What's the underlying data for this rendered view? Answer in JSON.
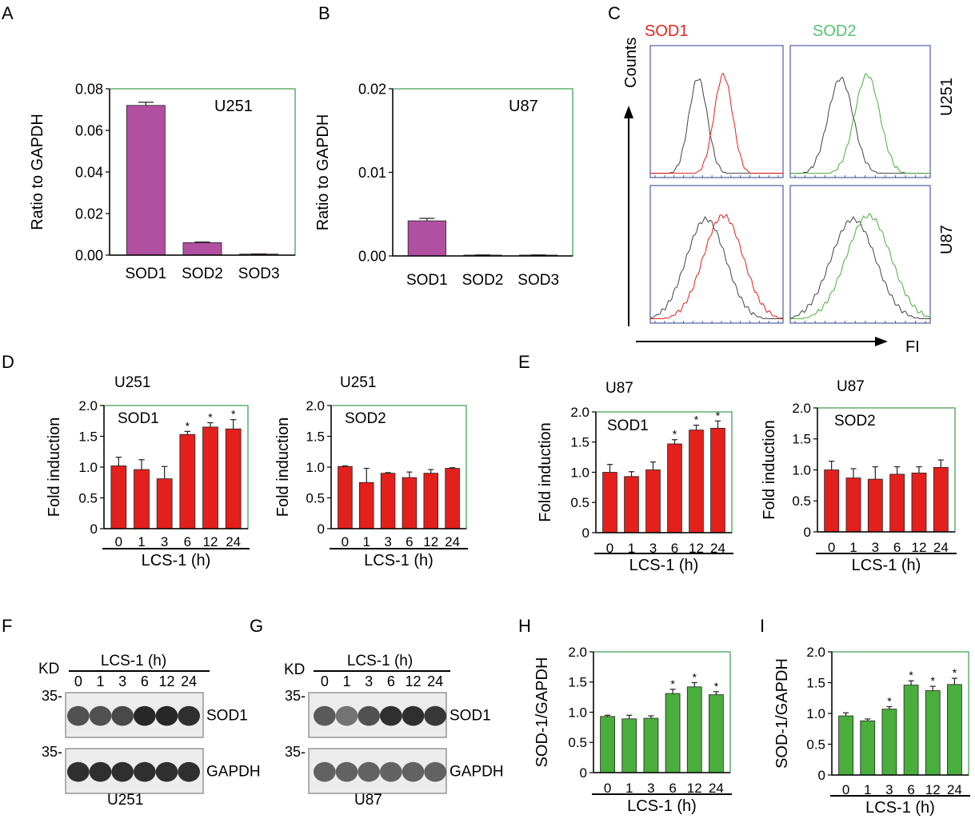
{
  "panel_letters": [
    "A",
    "B",
    "C",
    "D",
    "E",
    "F",
    "G",
    "H",
    "I"
  ],
  "colors": {
    "magenta": "#b14fa1",
    "red": "#e3201c",
    "green": "#4aae3c",
    "frame_green": "#3a9a4a",
    "frame_blue": "#2a3f8f",
    "gray_trace": "#444444",
    "sod1_title": "#e8221d",
    "sod2_title": "#55c174"
  },
  "chart_data": [
    {
      "id": "A",
      "type": "bar",
      "title": "U251",
      "ylabel": "Ratio to GAPDH",
      "categories": [
        "SOD1",
        "SOD2",
        "SOD3"
      ],
      "values": [
        0.072,
        0.006,
        0.0005
      ],
      "errors": [
        0.0015,
        0.0003,
        0.0001
      ],
      "ylim": [
        0,
        0.08
      ],
      "yticks": [
        "0.00",
        "0.02",
        "0.04",
        "0.06",
        "0.08"
      ]
    },
    {
      "id": "B",
      "type": "bar",
      "title": "U87",
      "ylabel": "Ratio to GAPDH",
      "categories": [
        "SOD1",
        "SOD2",
        "SOD3"
      ],
      "values": [
        0.0042,
        0.0001,
        0.0001
      ],
      "errors": [
        0.0003,
        2e-05,
        2e-05
      ],
      "ylim": [
        0,
        0.02
      ],
      "yticks": [
        "0.00",
        "0.01",
        "0.02"
      ]
    },
    {
      "id": "D1",
      "type": "bar",
      "title": "U251",
      "inner_label": "SOD1",
      "ylabel": "Fold induction",
      "xlabel": "LCS-1 (h)",
      "categories": [
        "0",
        "1",
        "3",
        "6",
        "12",
        "24"
      ],
      "values": [
        1.02,
        0.96,
        0.81,
        1.53,
        1.65,
        1.62
      ],
      "errors": [
        0.14,
        0.16,
        0.2,
        0.05,
        0.07,
        0.15
      ],
      "significant": [
        false,
        false,
        false,
        true,
        true,
        true
      ],
      "ylim": [
        0,
        2.0
      ],
      "yticks": [
        "0",
        "0.5",
        "1.0",
        "1.5",
        "2.0"
      ]
    },
    {
      "id": "D2",
      "type": "bar",
      "title": "U251",
      "inner_label": "SOD2",
      "ylabel": "Fold induction",
      "xlabel": "LCS-1 (h)",
      "categories": [
        "0",
        "1",
        "3",
        "6",
        "12",
        "24"
      ],
      "values": [
        1.01,
        0.75,
        0.9,
        0.83,
        0.9,
        0.98
      ],
      "errors": [
        0.01,
        0.23,
        0.01,
        0.09,
        0.06,
        0.01
      ],
      "significant": [
        false,
        false,
        false,
        false,
        false,
        false
      ],
      "ylim": [
        0,
        2.0
      ],
      "yticks": [
        "0",
        "0.5",
        "1.0",
        "1.5",
        "2.0"
      ]
    },
    {
      "id": "E1",
      "type": "bar",
      "title": "U87",
      "inner_label": "SOD1",
      "ylabel": "Fold induction",
      "xlabel": "LCS-1 (h)",
      "categories": [
        "0",
        "1",
        "3",
        "6",
        "12",
        "24"
      ],
      "values": [
        1.0,
        0.93,
        1.04,
        1.47,
        1.7,
        1.73
      ],
      "errors": [
        0.13,
        0.08,
        0.13,
        0.07,
        0.08,
        0.12
      ],
      "significant": [
        false,
        false,
        false,
        true,
        true,
        true
      ],
      "ylim": [
        0,
        2.0
      ],
      "yticks": [
        "0",
        "0.5",
        "1.0",
        "1.5",
        "2.0"
      ]
    },
    {
      "id": "E2",
      "type": "bar",
      "title": "U87",
      "inner_label": "SOD2",
      "ylabel": "Fold induction",
      "xlabel": "LCS-1 (h)",
      "categories": [
        "0",
        "1",
        "3",
        "6",
        "12",
        "24"
      ],
      "values": [
        1.0,
        0.87,
        0.85,
        0.93,
        0.95,
        1.04
      ],
      "errors": [
        0.14,
        0.15,
        0.2,
        0.12,
        0.1,
        0.12
      ],
      "significant": [
        false,
        false,
        false,
        false,
        false,
        false
      ],
      "ylim": [
        0,
        2.0
      ],
      "yticks": [
        "0",
        "0.5",
        "1.0",
        "1.5",
        "2.0"
      ]
    },
    {
      "id": "H",
      "type": "bar",
      "title": "",
      "ylabel": "SOD-1/GAPDH",
      "xlabel": "LCS-1 (h)",
      "categories": [
        "0",
        "1",
        "3",
        "6",
        "12",
        "24"
      ],
      "values": [
        0.93,
        0.89,
        0.9,
        1.31,
        1.42,
        1.29
      ],
      "errors": [
        0.02,
        0.06,
        0.04,
        0.07,
        0.07,
        0.05
      ],
      "significant": [
        false,
        false,
        false,
        true,
        true,
        true
      ],
      "ylim": [
        0,
        2.0
      ],
      "yticks": [
        "0",
        "0.5",
        "1.0",
        "1.5",
        "2.0"
      ]
    },
    {
      "id": "I",
      "type": "bar",
      "title": "",
      "ylabel": "SOD-1/GAPDH",
      "xlabel": "LCS-1 (h)",
      "categories": [
        "0",
        "1",
        "3",
        "6",
        "12",
        "24"
      ],
      "values": [
        0.96,
        0.88,
        1.07,
        1.46,
        1.37,
        1.47
      ],
      "errors": [
        0.05,
        0.03,
        0.04,
        0.07,
        0.07,
        0.1
      ],
      "significant": [
        false,
        false,
        true,
        true,
        true,
        true
      ],
      "ylim": [
        0,
        2.0
      ],
      "yticks": [
        "0",
        "0.5",
        "1.0",
        "1.5",
        "2.0"
      ]
    }
  ],
  "flow": {
    "y_axis_label": "Counts",
    "x_axis_label": "FI",
    "column_titles": [
      "SOD1",
      "SOD2"
    ],
    "row_labels": [
      "U251",
      "U87"
    ]
  },
  "blots": {
    "F": {
      "cell_line": "U251",
      "kd_label": "KD",
      "marker": "35-",
      "treatment": "LCS-1 (h)",
      "lanes": [
        "0",
        "1",
        "3",
        "6",
        "12",
        "24"
      ],
      "bands": [
        "SOD1",
        "GAPDH"
      ],
      "sod1_intensity": [
        0.7,
        0.7,
        0.75,
        0.95,
        0.95,
        0.9
      ],
      "gapdh_intensity": [
        0.9,
        0.9,
        0.9,
        0.9,
        0.9,
        0.9
      ]
    },
    "G": {
      "cell_line": "U87",
      "kd_label": "KD",
      "marker": "35-",
      "treatment": "LCS-1 (h)",
      "lanes": [
        "0",
        "1",
        "3",
        "6",
        "12",
        "24"
      ],
      "bands": [
        "SOD1",
        "GAPDH"
      ],
      "sod1_intensity": [
        0.65,
        0.5,
        0.7,
        0.9,
        0.9,
        0.85
      ],
      "gapdh_intensity": [
        0.6,
        0.6,
        0.6,
        0.6,
        0.6,
        0.6
      ]
    }
  },
  "significance_marker": "*"
}
